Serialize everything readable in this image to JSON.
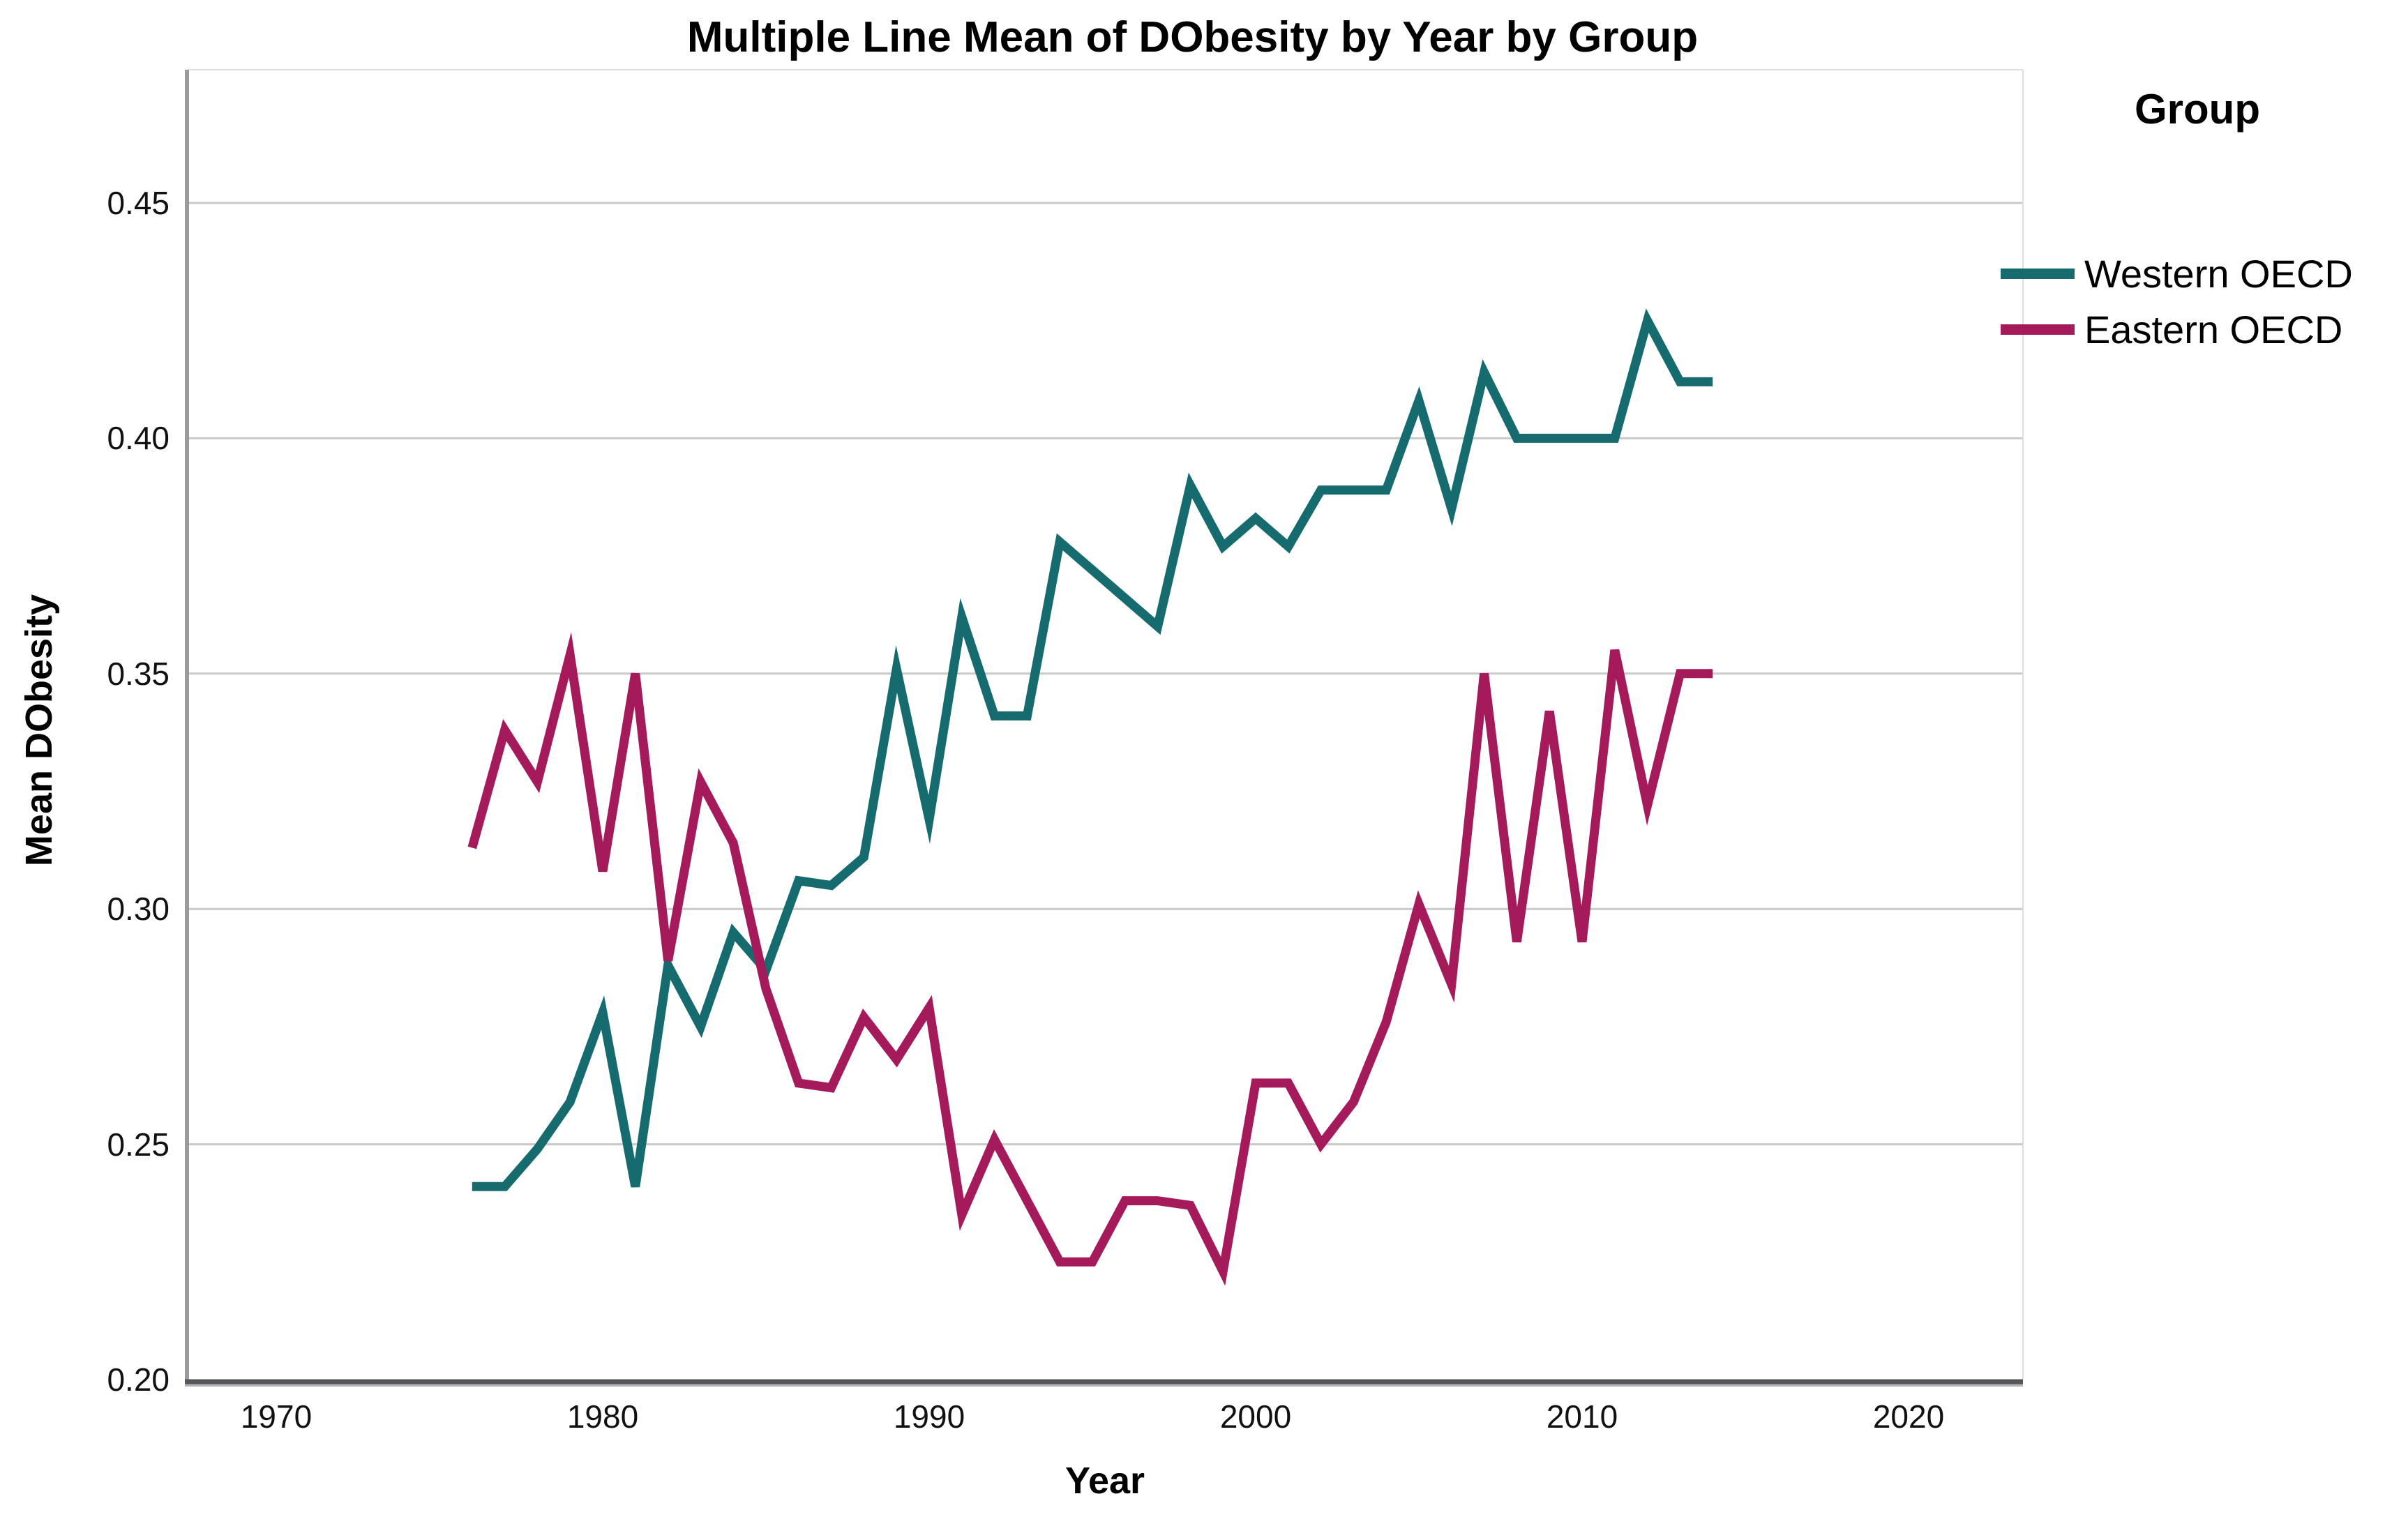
{
  "chart": {
    "title": "Multiple Line Mean of DObesity by Year by Group",
    "xlabel": "Year",
    "ylabel": "Mean DObesity",
    "legend": {
      "title": "Group",
      "items": [
        {
          "label": "Western OECD",
          "color": "#156b6d"
        },
        {
          "label": "Eastern OECD",
          "color": "#a51a5a"
        }
      ]
    },
    "y_ticks": [
      {
        "v": 0.45,
        "label": "0.45"
      },
      {
        "v": 0.4,
        "label": "0.40"
      },
      {
        "v": 0.35,
        "label": "0.35"
      },
      {
        "v": 0.3,
        "label": "0.30"
      },
      {
        "v": 0.25,
        "label": "0.25"
      },
      {
        "v": 0.2,
        "label": "0.20"
      }
    ],
    "x_ticks": [
      {
        "v": 1970,
        "label": "1970"
      },
      {
        "v": 1980,
        "label": "1980"
      },
      {
        "v": 1990,
        "label": "1990"
      },
      {
        "v": 2000,
        "label": "2000"
      },
      {
        "v": 2010,
        "label": "2010"
      },
      {
        "v": 2020,
        "label": "2020"
      }
    ],
    "colors": {
      "gridline": "#c9c9c9",
      "y_axis_line": "#9b9b9b",
      "x_axis_line": "#53575a",
      "x_axis_shadow": "#b0b3b5"
    }
  },
  "chart_data": {
    "type": "line",
    "title": "Multiple Line Mean of DObesity by Year by Group",
    "xlabel": "Year",
    "ylabel": "Mean DObesity",
    "xlim": [
      1967.3,
      2023.5
    ],
    "ylim": [
      0.2,
      0.478
    ],
    "grid": "horizontal-only",
    "legend_position": "right",
    "x": [
      1976,
      1977,
      1978,
      1979,
      1980,
      1981,
      1982,
      1983,
      1984,
      1985,
      1986,
      1987,
      1988,
      1989,
      1990,
      1991,
      1992,
      1993,
      1994,
      1995,
      1996,
      1997,
      1998,
      1999,
      2000,
      2001,
      2002,
      2003,
      2004,
      2005,
      2006,
      2007,
      2008,
      2009,
      2010,
      2011,
      2012,
      2013,
      2014
    ],
    "series": [
      {
        "name": "Western OECD",
        "color": "#156b6d",
        "values": [
          0.241,
          0.241,
          0.249,
          0.259,
          0.278,
          0.241,
          0.288,
          0.275,
          0.295,
          0.287,
          0.306,
          0.305,
          0.311,
          0.351,
          0.319,
          0.362,
          0.341,
          0.341,
          0.378,
          0.372,
          0.366,
          0.36,
          0.39,
          0.377,
          0.383,
          0.377,
          0.389,
          0.389,
          0.389,
          0.408,
          0.385,
          0.414,
          0.4,
          0.4,
          0.4,
          0.4,
          0.425,
          0.412,
          0.412
        ]
      },
      {
        "name": "Eastern OECD",
        "color": "#a51a5a",
        "values": [
          0.313,
          0.338,
          0.327,
          0.354,
          0.308,
          0.35,
          0.289,
          0.327,
          0.314,
          0.283,
          0.263,
          0.262,
          0.277,
          0.268,
          0.279,
          0.235,
          0.251,
          0.238,
          0.225,
          0.225,
          0.238,
          0.238,
          0.237,
          0.223,
          0.263,
          0.263,
          0.25,
          0.259,
          0.276,
          0.301,
          0.284,
          0.35,
          0.293,
          0.342,
          0.293,
          0.355,
          0.322,
          0.35,
          0.35
        ]
      }
    ]
  }
}
